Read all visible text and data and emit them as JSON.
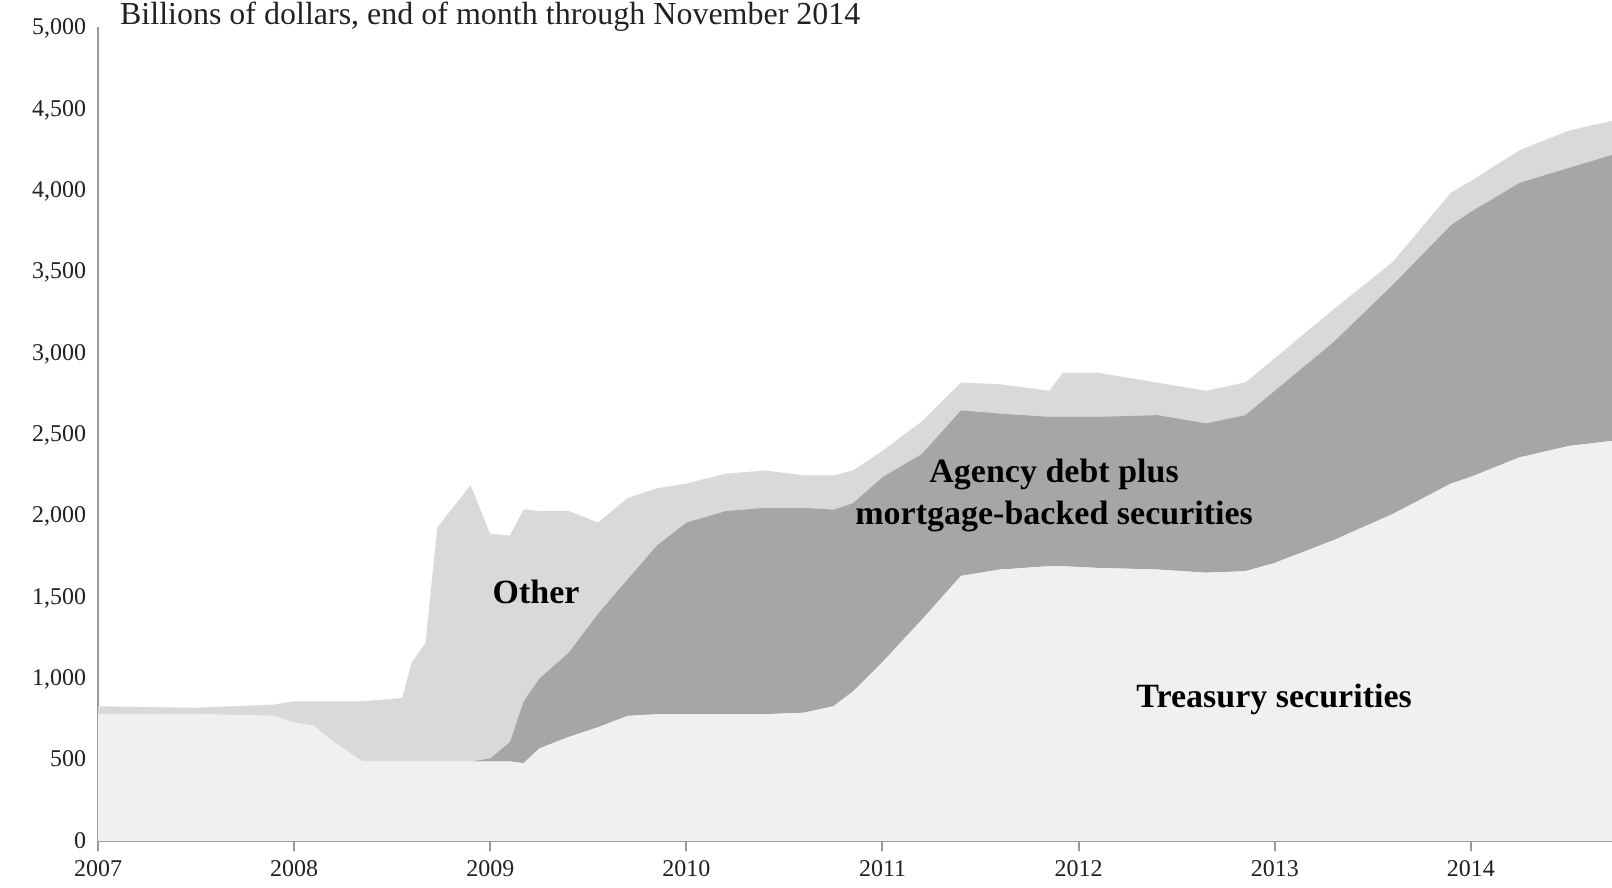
{
  "chart_data": {
    "type": "area",
    "stacked": true,
    "title": "Billions of dollars, end of month through November 2014",
    "x": [
      2007,
      2007.5,
      2007.9,
      2008.0,
      2008.1,
      2008.2,
      2008.35,
      2008.55,
      2008.6,
      2008.67,
      2008.73,
      2008.9,
      2009.0,
      2009.1,
      2009.17,
      2009.25,
      2009.4,
      2009.55,
      2009.7,
      2009.85,
      2010.0,
      2010.2,
      2010.4,
      2010.6,
      2010.75,
      2010.85,
      2011.0,
      2011.2,
      2011.4,
      2011.6,
      2011.85,
      2011.92,
      2012.1,
      2012.4,
      2012.65,
      2012.85,
      2013.0,
      2013.3,
      2013.6,
      2013.9,
      2014.0,
      2014.25,
      2014.5,
      2014.72
    ],
    "series": [
      {
        "color": "#f0f0f0",
        "values": [
          780,
          780,
          770,
          730,
          710,
          610,
          490,
          490,
          490,
          490,
          490,
          490,
          490,
          490,
          480,
          570,
          640,
          700,
          770,
          780,
          780,
          780,
          780,
          790,
          830,
          920,
          1100,
          1360,
          1630,
          1670,
          1690,
          1690,
          1680,
          1670,
          1650,
          1660,
          1710,
          1850,
          2010,
          2200,
          2240,
          2360,
          2430,
          2460
        ]
      },
      {
        "color": "#a6a6a6",
        "values": [
          0,
          0,
          0,
          0,
          0,
          0,
          0,
          0,
          0,
          0,
          0,
          0,
          20,
          120,
          380,
          430,
          520,
          700,
          840,
          1040,
          1180,
          1250,
          1270,
          1260,
          1210,
          1160,
          1140,
          1020,
          1020,
          960,
          920,
          920,
          930,
          950,
          920,
          960,
          1060,
          1220,
          1410,
          1590,
          1630,
          1690,
          1710,
          1760
        ]
      },
      {
        "color": "#d9d9d9",
        "values": [
          50,
          40,
          70,
          130,
          150,
          250,
          370,
          390,
          610,
          730,
          1440,
          1700,
          1380,
          1270,
          1180,
          1030,
          870,
          560,
          500,
          350,
          240,
          230,
          230,
          200,
          210,
          200,
          160,
          200,
          170,
          180,
          160,
          270,
          270,
          200,
          200,
          200,
          200,
          200,
          140,
          200,
          190,
          200,
          230,
          210
        ]
      }
    ],
    "xlim": [
      2007,
      2014.72
    ],
    "xticks": [
      2007,
      2008,
      2009,
      2010,
      2011,
      2012,
      2013,
      2014
    ],
    "ylim": [
      0,
      5000
    ],
    "yticks": [
      0,
      500,
      {
        "value": 1000,
        "label": "1,000"
      },
      {
        "value": 1500,
        "label": "1,500"
      },
      {
        "value": 2000,
        "label": "2,000"
      },
      {
        "value": 2500,
        "label": "2,500"
      },
      {
        "value": 3000,
        "label": "3,000"
      },
      {
        "value": 3500,
        "label": "3,500"
      },
      {
        "value": 4000,
        "label": "4,000"
      },
      {
        "value": 4500,
        "label": "4,500"
      },
      {
        "value": 5000,
        "label": "5,000"
      }
    ],
    "grid": false,
    "legend": false,
    "annotations": [
      "Other",
      "Agency debt plus\nmortgage-backed securities",
      "Treasury securities"
    ]
  }
}
